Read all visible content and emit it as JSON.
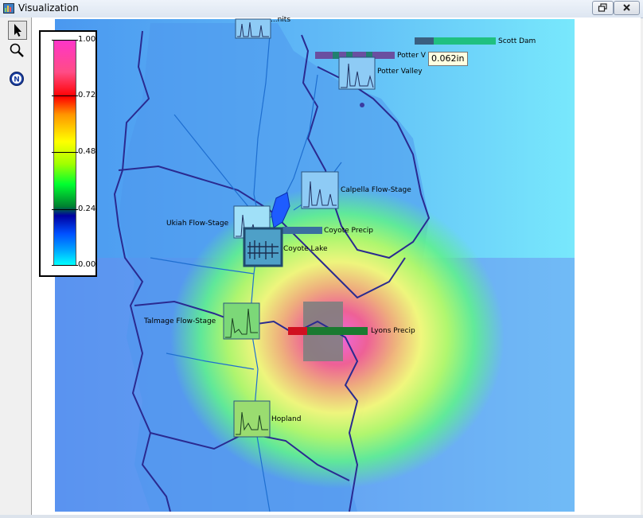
{
  "window": {
    "title": "Visualization",
    "icon": "visualization-app-icon"
  },
  "toolbar": {
    "tools": [
      {
        "name": "pointer-icon",
        "selected": true
      },
      {
        "name": "zoom-icon",
        "selected": false
      },
      {
        "name": "info-icon",
        "selected": false
      }
    ]
  },
  "legend": {
    "ticks": [
      "1.00",
      "0.72",
      "0.48",
      "0.24",
      "0.00"
    ]
  },
  "map": {
    "labels": {
      "top_station": "...nits",
      "scott_dam": "Scott Dam",
      "potter_v": "Potter V",
      "potter_valley": "Potter Valley",
      "calpella": "Calpella Flow-Stage",
      "ukiah": "Ukiah Flow-Stage",
      "coyote_precip": "Coyote Precip",
      "coyote_lake": "Coyote Lake",
      "talmage": "Talmage Flow-Stage",
      "lyons_precip": "Lyons Precip",
      "hopland": "Hopland"
    },
    "tooltip": "0.062in"
  },
  "colors": {
    "ocean": "#68d8f8",
    "basin": "#5aa8f0",
    "precip_hot": "#ff70e0",
    "boundary": "#2a2a90",
    "river": "#1f6fd0"
  }
}
